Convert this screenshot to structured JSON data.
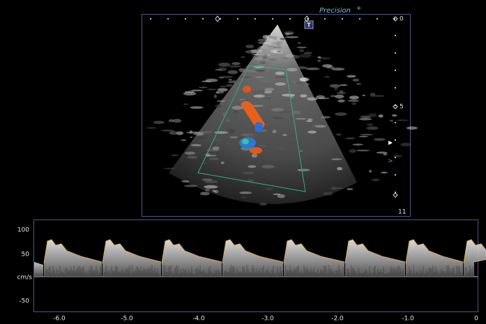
{
  "header": {
    "brand": "Precision",
    "brand_mark": "+"
  },
  "image": {
    "marker": "T",
    "depth_scale": [
      "0",
      "5",
      "11"
    ]
  },
  "doppler": {
    "y_labels": [
      "100",
      "50",
      "cm/s",
      "-50"
    ],
    "x_labels": [
      "-6.0",
      "-5.0",
      "-4.0",
      "-3.0",
      "-2.0",
      "-1.0",
      "0"
    ]
  }
}
